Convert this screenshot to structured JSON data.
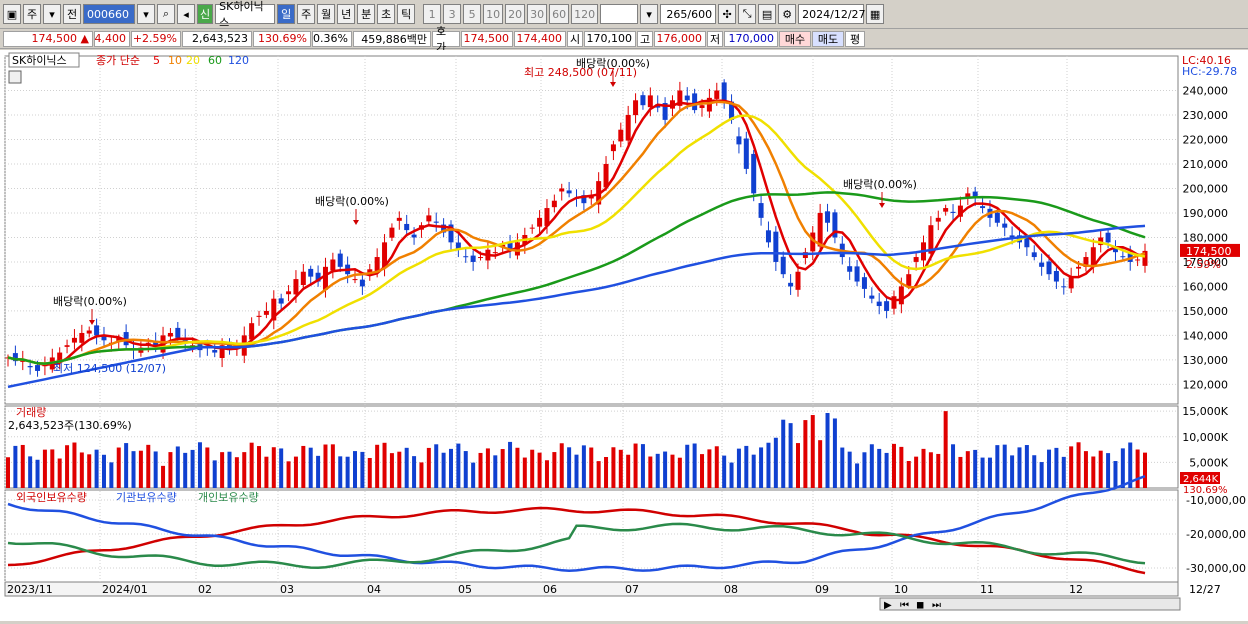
{
  "toolbar": {
    "period_type": "주",
    "prev_label": "전",
    "code": "000660",
    "stock_name": "SK하이닉스",
    "credit_badge": "신",
    "period_tabs": [
      "일",
      "주",
      "월",
      "년",
      "분",
      "초",
      "틱"
    ],
    "selected_period": "일",
    "intervals": [
      "1",
      "3",
      "5",
      "10",
      "20",
      "30",
      "60",
      "120"
    ],
    "count": "265",
    "count_max": "/600",
    "date": "2024/12/27"
  },
  "quote": {
    "price": "174,500",
    "change": "4,400",
    "change_pct": "+2.59%",
    "volume": "2,643,523",
    "vol_ratio": "130.69%",
    "turnover_pct": "0.36%",
    "amount": "459,886백만",
    "ask_label": "호가",
    "ask": "174,500",
    "bid": "174,400",
    "open_label": "시",
    "open": "170,100",
    "high_label": "고",
    "high": "176,000",
    "low_label": "저",
    "low": "170,000",
    "buy_label": "매수",
    "sell_label": "매도",
    "eval_label": "평"
  },
  "chart_data": {
    "type": "candlestick",
    "title": "SK하이닉스",
    "legend": {
      "close_label": "종가 단순",
      "ma": [
        "5",
        "10",
        "20",
        "60",
        "120"
      ]
    },
    "ma_colors": {
      "5": "#e00000",
      "10": "#f08000",
      "20": "#f0e000",
      "60": "#1a9a1a",
      "120": "#2050e0"
    },
    "ylim": [
      112000,
      250000
    ],
    "y_ticks": [
      "240,000",
      "230,000",
      "220,000",
      "210,000",
      "200,000",
      "190,000",
      "180,000",
      "170,000",
      "160,000",
      "150,000",
      "140,000",
      "130,000",
      "120,000"
    ],
    "y_tick_values": [
      240000,
      230000,
      220000,
      210000,
      200000,
      190000,
      180000,
      170000,
      160000,
      150000,
      140000,
      130000,
      120000
    ],
    "x_labels": [
      "2023/11",
      "2024/01",
      "02",
      "03",
      "04",
      "05",
      "06",
      "07",
      "08",
      "09",
      "10",
      "11",
      "12",
      "12/27"
    ],
    "lc": "LC:40.16",
    "hc": "HC:-29.78",
    "last_price": "174,500",
    "last_pct": "2.59%",
    "annotations": {
      "high": "최고 248,500 (07/11)",
      "low": "최저 124,500 (12/07)",
      "dividend": [
        "배당락(0.00%)",
        "배당락(0.00%)",
        "배당락(0.00%)",
        "배당락(0.00%)"
      ]
    },
    "close_series": [
      131000,
      129500,
      130000,
      127000,
      125500,
      128000,
      131000,
      133000,
      136000,
      139000,
      141000,
      142000,
      140000,
      138000,
      137000,
      139000,
      136000,
      134000,
      135000,
      137000,
      136000,
      140000,
      141000,
      139000,
      137000,
      136000,
      134000,
      135000,
      133000,
      136000,
      134000,
      135000,
      140000,
      145000,
      148000,
      150000,
      155000,
      153000,
      158000,
      163000,
      166000,
      164000,
      162000,
      168000,
      171000,
      168000,
      165000,
      163000,
      160000,
      167000,
      172000,
      178000,
      184000,
      188000,
      183000,
      180000,
      185000,
      189000,
      186000,
      182000,
      178000,
      175000,
      172000,
      170000,
      172000,
      175000,
      174000,
      177000,
      175000,
      178000,
      181000,
      184000,
      188000,
      192000,
      195000,
      200000,
      198000,
      196000,
      194000,
      197000,
      203000,
      210000,
      218000,
      224000,
      230000,
      236000,
      234000,
      238000,
      233000,
      228000,
      236000,
      240000,
      236000,
      232000,
      234000,
      237000,
      240000,
      236000,
      228000,
      218000,
      208000,
      198000,
      188000,
      178000,
      170000,
      165000,
      160000,
      166000,
      174000,
      182000,
      190000,
      186000,
      180000,
      172000,
      166000,
      162000,
      159000,
      155000,
      152000,
      150000,
      156000,
      160000,
      165000,
      172000,
      178000,
      185000,
      188000,
      192000,
      190000,
      193000,
      198000,
      196000,
      192000,
      188000,
      186000,
      184000,
      180000,
      178000,
      176000,
      172000,
      168000,
      165000,
      162000,
      160000,
      164000,
      168000,
      172000,
      176000,
      180000,
      178000,
      174000,
      172000,
      170000,
      171000,
      174500
    ],
    "volume": {
      "label": "거래량",
      "current": "2,643,523주(130.69%)",
      "y_ticks": [
        "15,000K",
        "10,000K",
        "5,000K"
      ],
      "last_label": "2,644K",
      "last_pct": "130.69%"
    },
    "holdings": {
      "series": [
        "외국인보유수량",
        "기관보유수량",
        "개인보유수량"
      ],
      "colors": [
        "#d00000",
        "#2050e0",
        "#2a8a4a"
      ],
      "y_ticks": [
        "-10,000,00",
        "-20,000,00",
        "-30,000,00"
      ]
    }
  }
}
